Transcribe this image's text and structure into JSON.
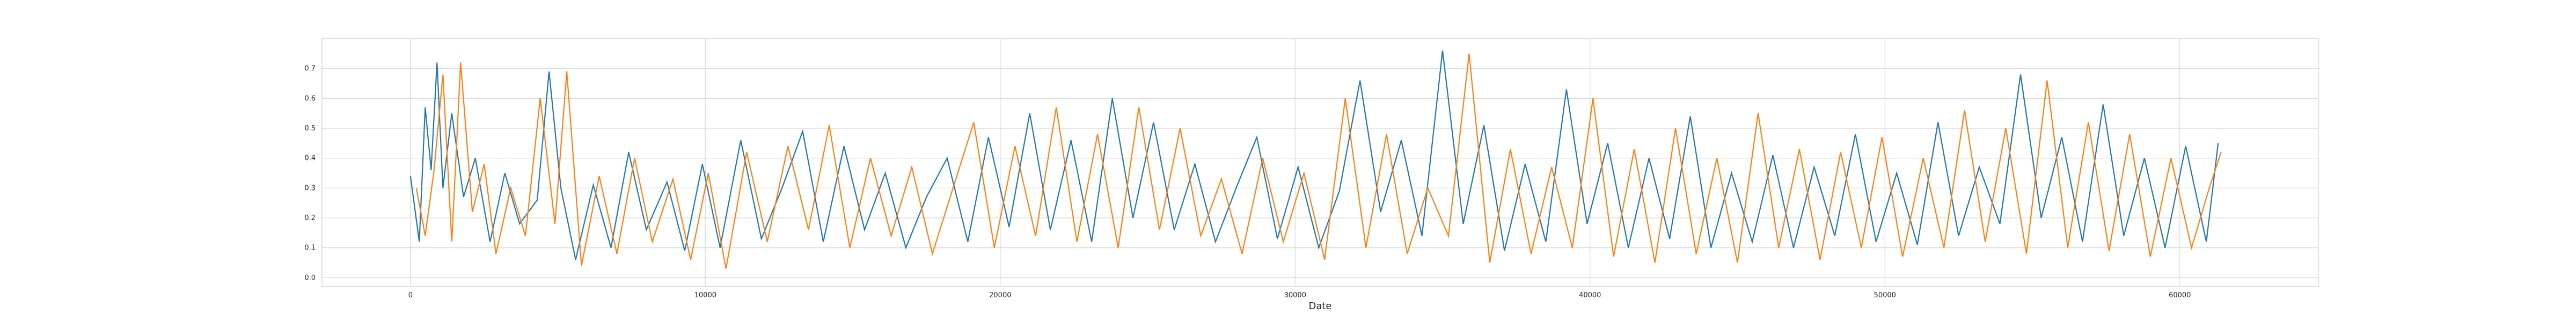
{
  "chart_data": {
    "type": "line",
    "xlabel": "Date",
    "ylabel": "",
    "title": "",
    "xlim": [
      -3000,
      64700
    ],
    "ylim": [
      -0.03,
      0.8
    ],
    "x_ticks": [
      0,
      10000,
      20000,
      30000,
      40000,
      50000,
      60000
    ],
    "x_tick_labels": [
      "0",
      "10000",
      "20000",
      "30000",
      "40000",
      "50000",
      "60000"
    ],
    "y_ticks": [
      0.0,
      0.1,
      0.2,
      0.3,
      0.4,
      0.5,
      0.6,
      0.7
    ],
    "y_tick_labels": [
      "0.0",
      "0.1",
      "0.2",
      "0.3",
      "0.4",
      "0.5",
      "0.6",
      "0.7"
    ],
    "grid": true,
    "legend": "none",
    "series": [
      {
        "color": "#1f77b4",
        "x": [
          0,
          300,
          500,
          700,
          900,
          1100,
          1400,
          1800,
          2200,
          2700,
          3200,
          3700,
          4300,
          4700,
          5100,
          5600,
          6200,
          6800,
          7400,
          8000,
          8700,
          9300,
          9900,
          10500,
          11200,
          11900,
          12600,
          13300,
          14000,
          14700,
          15400,
          16100,
          16800,
          17500,
          18200,
          18900,
          19600,
          20300,
          21000,
          21700,
          22400,
          23100,
          23800,
          24500,
          25200,
          25900,
          26600,
          27300,
          28000,
          28700,
          29400,
          30100,
          30800,
          31500,
          32200,
          32900,
          33600,
          34300,
          35000,
          35700,
          36400,
          37100,
          37800,
          38500,
          39200,
          39900,
          40600,
          41300,
          42000,
          42700,
          43400,
          44100,
          44800,
          45500,
          46200,
          46900,
          47600,
          48300,
          49000,
          49700,
          50400,
          51100,
          51800,
          52500,
          53200,
          53900,
          54600,
          55300,
          56000,
          56700,
          57400,
          58100,
          58800,
          59500,
          60200,
          60900,
          61300
        ],
        "y": [
          0.34,
          0.12,
          0.57,
          0.36,
          0.72,
          0.3,
          0.55,
          0.27,
          0.4,
          0.12,
          0.35,
          0.18,
          0.26,
          0.69,
          0.3,
          0.06,
          0.31,
          0.1,
          0.42,
          0.16,
          0.32,
          0.09,
          0.38,
          0.1,
          0.46,
          0.13,
          0.3,
          0.49,
          0.12,
          0.44,
          0.16,
          0.35,
          0.1,
          0.27,
          0.4,
          0.12,
          0.47,
          0.17,
          0.55,
          0.16,
          0.46,
          0.12,
          0.6,
          0.2,
          0.52,
          0.16,
          0.38,
          0.12,
          0.3,
          0.47,
          0.13,
          0.37,
          0.1,
          0.29,
          0.66,
          0.22,
          0.46,
          0.14,
          0.76,
          0.18,
          0.51,
          0.09,
          0.38,
          0.12,
          0.63,
          0.18,
          0.45,
          0.1,
          0.4,
          0.13,
          0.54,
          0.1,
          0.35,
          0.12,
          0.41,
          0.1,
          0.37,
          0.14,
          0.48,
          0.12,
          0.35,
          0.11,
          0.52,
          0.14,
          0.37,
          0.18,
          0.68,
          0.2,
          0.47,
          0.12,
          0.58,
          0.14,
          0.4,
          0.1,
          0.44,
          0.12,
          0.45
        ]
      },
      {
        "color": "#ff7f0e",
        "x": [
          200,
          500,
          800,
          1100,
          1400,
          1700,
          2100,
          2500,
          2900,
          3400,
          3900,
          4400,
          4900,
          5300,
          5800,
          6400,
          7000,
          7600,
          8200,
          8900,
          9500,
          10100,
          10700,
          11400,
          12100,
          12800,
          13500,
          14200,
          14900,
          15600,
          16300,
          17000,
          17700,
          18400,
          19100,
          19800,
          20500,
          21200,
          21900,
          22600,
          23300,
          24000,
          24700,
          25400,
          26100,
          26800,
          27500,
          28200,
          28900,
          29600,
          30300,
          31000,
          31700,
          32400,
          33100,
          33800,
          34500,
          35200,
          35900,
          36600,
          37300,
          38000,
          38700,
          39400,
          40100,
          40800,
          41500,
          42200,
          42900,
          43600,
          44300,
          45000,
          45700,
          46400,
          47100,
          47800,
          48500,
          49200,
          49900,
          50600,
          51300,
          52000,
          52700,
          53400,
          54100,
          54800,
          55500,
          56200,
          56900,
          57600,
          58300,
          59000,
          59700,
          60400,
          61000,
          61400
        ],
        "y": [
          0.3,
          0.14,
          0.36,
          0.68,
          0.12,
          0.72,
          0.22,
          0.38,
          0.08,
          0.3,
          0.14,
          0.6,
          0.18,
          0.69,
          0.04,
          0.34,
          0.08,
          0.4,
          0.12,
          0.33,
          0.06,
          0.35,
          0.03,
          0.42,
          0.12,
          0.44,
          0.16,
          0.51,
          0.1,
          0.4,
          0.14,
          0.37,
          0.08,
          0.3,
          0.52,
          0.1,
          0.44,
          0.14,
          0.57,
          0.12,
          0.48,
          0.1,
          0.57,
          0.16,
          0.5,
          0.14,
          0.33,
          0.08,
          0.4,
          0.12,
          0.35,
          0.06,
          0.6,
          0.1,
          0.48,
          0.08,
          0.3,
          0.14,
          0.75,
          0.05,
          0.43,
          0.08,
          0.37,
          0.1,
          0.6,
          0.07,
          0.43,
          0.05,
          0.5,
          0.08,
          0.4,
          0.05,
          0.55,
          0.1,
          0.43,
          0.06,
          0.42,
          0.1,
          0.47,
          0.07,
          0.4,
          0.1,
          0.56,
          0.12,
          0.5,
          0.08,
          0.66,
          0.1,
          0.52,
          0.09,
          0.48,
          0.07,
          0.4,
          0.1,
          0.3,
          0.42
        ]
      }
    ]
  }
}
